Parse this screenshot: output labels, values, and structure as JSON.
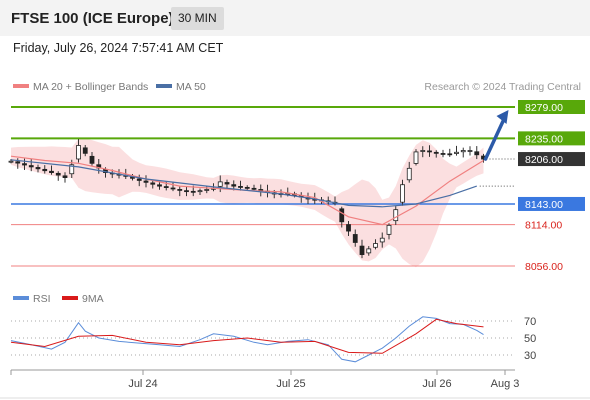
{
  "header": {
    "instrument": "FTSE 100 (ICE Europe)",
    "timeframe": "30 MIN",
    "timestamp": "Friday, July 26, 2024 7:57:41 AM CET"
  },
  "colors": {
    "resistance": "#58a80a",
    "support": "#f08080",
    "pivot": "#3a78e0",
    "last": "#333333",
    "bollinger_fill": "#fad4d6",
    "ma20": "#f08080",
    "ma50": "#4a6fa5",
    "arrow": "#2c5aa8",
    "rsi": "#5b8dd9",
    "rsi_ma": "#d91a1a",
    "candle_up": "#3a9a2a",
    "candle_down": "#c0302a"
  },
  "chart_data": [
    {
      "type": "candlestick",
      "title": "FTSE 100 (ICE Europe)",
      "timeframe": "30 MIN",
      "legend": [
        "MA 20 + Bollinger Bands",
        "MA 50"
      ],
      "legend_placement": "top-left",
      "watermark": "Research © 2024 Trading Central",
      "x_ticks": [
        "Jul 24",
        "Jul 25",
        "Jul 26",
        "Aug 3"
      ],
      "ylim": [
        8040,
        8295
      ],
      "levels": [
        {
          "label": "8279.00",
          "value": 8279,
          "kind": "resistance"
        },
        {
          "label": "8235.00",
          "value": 8235,
          "kind": "resistance"
        },
        {
          "label": "8206.00",
          "value": 8206,
          "kind": "last"
        },
        {
          "label": "8143.00",
          "value": 8143,
          "kind": "pivot"
        },
        {
          "label": "8114.00",
          "value": 8114,
          "kind": "support"
        },
        {
          "label": "8056.00",
          "value": 8056,
          "kind": "support"
        }
      ],
      "close_path": [
        [
          0,
          8203
        ],
        [
          3,
          8195
        ],
        [
          6,
          8187
        ],
        [
          8,
          8180
        ],
        [
          9,
          8198
        ],
        [
          10,
          8225
        ],
        [
          11,
          8214
        ],
        [
          12,
          8200
        ],
        [
          14,
          8187
        ],
        [
          17,
          8182
        ],
        [
          19,
          8176
        ],
        [
          22,
          8168
        ],
        [
          25,
          8162
        ],
        [
          27,
          8160
        ],
        [
          30,
          8165
        ],
        [
          31,
          8174
        ],
        [
          33,
          8168
        ],
        [
          36,
          8164
        ],
        [
          39,
          8157
        ],
        [
          41,
          8158
        ],
        [
          44,
          8150
        ],
        [
          46,
          8148
        ],
        [
          48,
          8144
        ],
        [
          49,
          8118
        ],
        [
          50,
          8105
        ],
        [
          51,
          8089
        ],
        [
          52,
          8072
        ],
        [
          53,
          8080
        ],
        [
          55,
          8095
        ],
        [
          56,
          8113
        ],
        [
          57,
          8135
        ],
        [
          58,
          8170
        ],
        [
          59,
          8193
        ],
        [
          60,
          8216
        ],
        [
          61,
          8218
        ],
        [
          63,
          8214
        ],
        [
          65,
          8213
        ],
        [
          67,
          8218
        ],
        [
          68,
          8218
        ],
        [
          69,
          8212
        ],
        [
          70,
          8206
        ]
      ],
      "ma20_path": [
        [
          0,
          8210
        ],
        [
          5,
          8204
        ],
        [
          10,
          8200
        ],
        [
          15,
          8190
        ],
        [
          20,
          8178
        ],
        [
          25,
          8168
        ],
        [
          30,
          8165
        ],
        [
          35,
          8162
        ],
        [
          40,
          8160
        ],
        [
          45,
          8152
        ],
        [
          50,
          8125
        ],
        [
          55,
          8114
        ],
        [
          60,
          8140
        ],
        [
          65,
          8175
        ],
        [
          70,
          8204
        ]
      ],
      "ma50_path": [
        [
          0,
          8205
        ],
        [
          10,
          8195
        ],
        [
          20,
          8178
        ],
        [
          30,
          8167
        ],
        [
          40,
          8157
        ],
        [
          45,
          8150
        ],
        [
          50,
          8141
        ],
        [
          55,
          8139
        ],
        [
          60,
          8143
        ],
        [
          65,
          8155
        ],
        [
          69,
          8168
        ]
      ],
      "forecast_arrow": {
        "from": [
          70,
          8206
        ],
        "to": [
          74,
          8279
        ]
      }
    },
    {
      "type": "line",
      "title": "RSI",
      "legend": [
        "RSI",
        "9MA"
      ],
      "ylim": [
        10,
        90
      ],
      "y_ticks": [
        70,
        50,
        30
      ],
      "series": [
        {
          "name": "RSI",
          "values": [
            [
              0,
              47
            ],
            [
              3,
              42
            ],
            [
              6,
              37
            ],
            [
              8,
              45
            ],
            [
              10,
              68
            ],
            [
              11,
              58
            ],
            [
              13,
              50
            ],
            [
              16,
              46
            ],
            [
              19,
              44
            ],
            [
              22,
              42
            ],
            [
              25,
              40
            ],
            [
              28,
              48
            ],
            [
              30,
              55
            ],
            [
              33,
              52
            ],
            [
              36,
              45
            ],
            [
              38,
              42
            ],
            [
              41,
              46
            ],
            [
              44,
              48
            ],
            [
              47,
              42
            ],
            [
              49,
              25
            ],
            [
              51,
              22
            ],
            [
              53,
              30
            ],
            [
              55,
              38
            ],
            [
              57,
              50
            ],
            [
              59,
              64
            ],
            [
              61,
              75
            ],
            [
              63,
              73
            ],
            [
              65,
              67
            ],
            [
              67,
              66
            ],
            [
              69,
              59
            ],
            [
              70,
              54
            ]
          ]
        },
        {
          "name": "9MA",
          "values": [
            [
              0,
              45
            ],
            [
              5,
              40
            ],
            [
              10,
              52
            ],
            [
              15,
              53
            ],
            [
              20,
              45
            ],
            [
              25,
              42
            ],
            [
              30,
              47
            ],
            [
              35,
              50
            ],
            [
              40,
              45
            ],
            [
              45,
              46
            ],
            [
              50,
              33
            ],
            [
              55,
              32
            ],
            [
              60,
              55
            ],
            [
              63,
              72
            ],
            [
              66,
              67
            ],
            [
              70,
              63
            ]
          ]
        }
      ]
    }
  ]
}
